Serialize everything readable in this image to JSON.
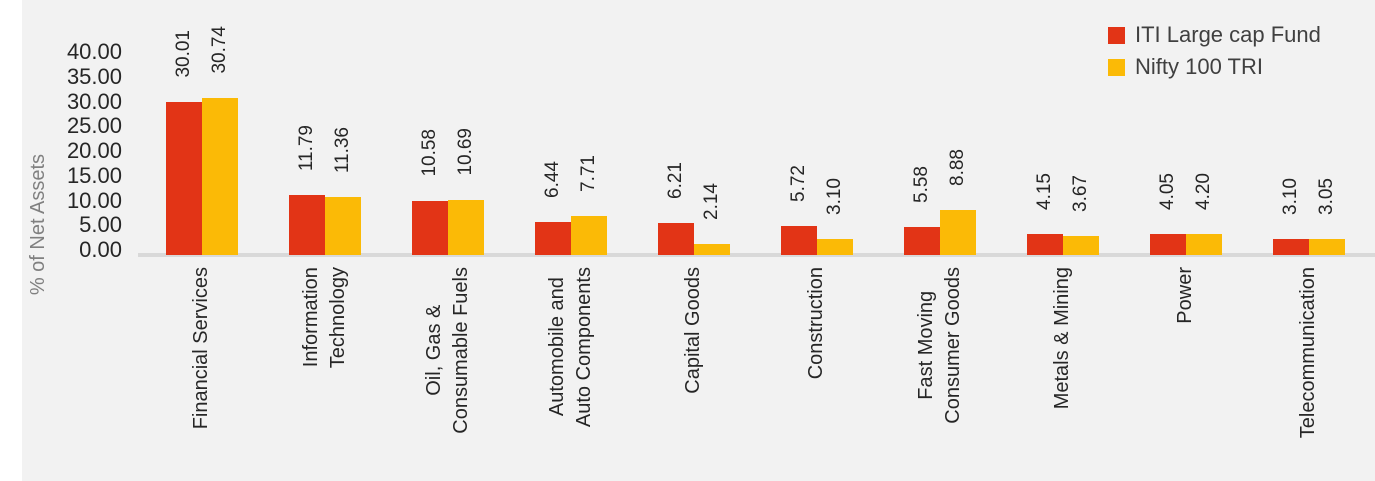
{
  "colors": {
    "background": "#f2f2f2",
    "left_margin": "#ffffff",
    "axis_line": "#d9d9d9",
    "text": "#262626",
    "axis_title_text": "#808080",
    "legend_text": "#404040",
    "series_red": "#e23416",
    "series_yellow": "#fbba06"
  },
  "chart_data": {
    "type": "bar",
    "title": "",
    "xlabel": "",
    "ylabel": "% of Net Assets",
    "ylim": [
      0,
      40
    ],
    "ytick_step": 5,
    "yticks": [
      "40.00",
      "35.00",
      "30.00",
      "25.00",
      "20.00",
      "15.00",
      "10.00",
      "5.00",
      "0.00"
    ],
    "grid": false,
    "legend_position": "top-right",
    "value_labels": "rotated, two decimals, above bars",
    "categories": [
      "Financial Services",
      "Information\nTechnology",
      "Oil, Gas &\nConsumable Fuels",
      "Automobile and\nAuto Components",
      "Capital Goods",
      "Construction",
      "Fast Moving\nConsumer Goods",
      "Metals & Mining",
      "Power",
      "Telecommunication"
    ],
    "series": [
      {
        "name": "ITI Large cap Fund",
        "color": "#e23416",
        "values": [
          30.01,
          11.79,
          10.58,
          6.44,
          6.21,
          5.72,
          5.58,
          4.15,
          4.05,
          3.1
        ]
      },
      {
        "name": "Nifty 100 TRI",
        "color": "#fbba06",
        "values": [
          30.74,
          11.36,
          10.69,
          7.71,
          2.14,
          3.1,
          8.88,
          3.67,
          4.2,
          3.05
        ]
      }
    ]
  }
}
